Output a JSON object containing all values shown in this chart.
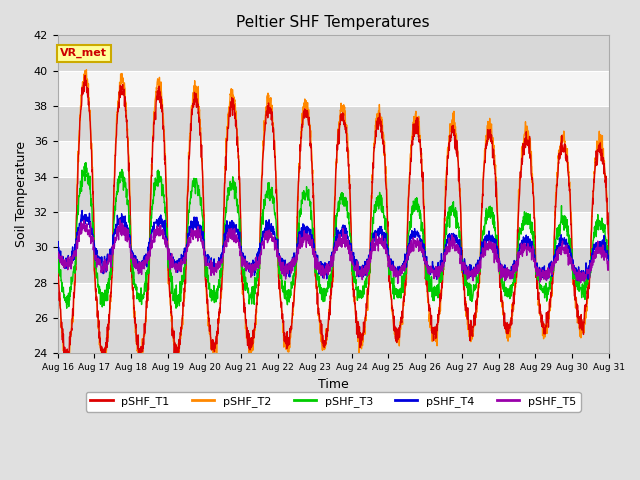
{
  "title": "Peltier SHF Temperatures",
  "xlabel": "Time",
  "ylabel": "Soil Temperature",
  "ylim": [
    24,
    42
  ],
  "yticks": [
    24,
    26,
    28,
    30,
    32,
    34,
    36,
    38,
    40,
    42
  ],
  "xtick_labels": [
    "Aug 16",
    "Aug 17",
    "Aug 18",
    "Aug 19",
    "Aug 20",
    "Aug 21",
    "Aug 22",
    "Aug 23",
    "Aug 24",
    "Aug 25",
    "Aug 26",
    "Aug 27",
    "Aug 28",
    "Aug 29",
    "Aug 30",
    "Aug 31"
  ],
  "colors": {
    "pSHF_T1": "#dd0000",
    "pSHF_T2": "#ff8800",
    "pSHF_T3": "#00cc00",
    "pSHF_T4": "#0000dd",
    "pSHF_T5": "#9900aa"
  },
  "background_color": "#e0e0e0",
  "plot_bg_color": "#f5f5f5",
  "band_color_dark": "#d8d8d8",
  "band_color_light": "#f5f5f5",
  "grid_color": "#ffffff",
  "annotation_text": "VR_met",
  "annotation_color": "#cc0000",
  "annotation_bg": "#ffff99",
  "annotation_border": "#ccaa00"
}
